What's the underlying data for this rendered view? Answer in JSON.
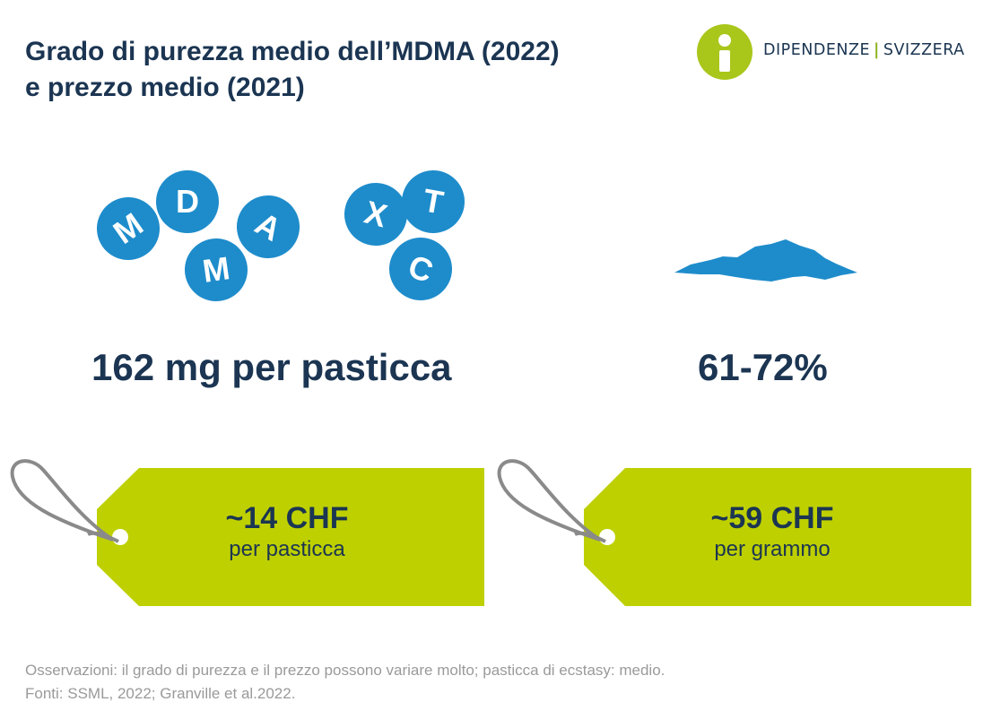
{
  "title": {
    "line1": "Grado di purezza medio dell’MDMA (2022)",
    "line2": "e prezzo medio (2021)"
  },
  "logo": {
    "part1": "DIPENDENZE",
    "separator": "|",
    "part2": "SVIZZERA",
    "icon": "info-person-icon"
  },
  "pills_left": [
    "M",
    "D",
    "A",
    "M"
  ],
  "pills_right": [
    "X",
    "T",
    "C"
  ],
  "stats": {
    "tablet": "162 mg per pasticca",
    "purity": "61-72%"
  },
  "tags": [
    {
      "price": "~14 CHF",
      "unit": "per pasticca"
    },
    {
      "price": "~59 CHF",
      "unit": "per grammo"
    }
  ],
  "notes": {
    "line1": "Osservazioni: il grado di purezza e il prezzo possono variare molto; pasticca di ecstasy: medio.",
    "line2": "Fonti: SSML, 2022; Granville et al.2022."
  },
  "colors": {
    "navy": "#1b3552",
    "blue": "#1e8ccb",
    "lime": "#bed000",
    "grey": "#9a9a9a"
  }
}
